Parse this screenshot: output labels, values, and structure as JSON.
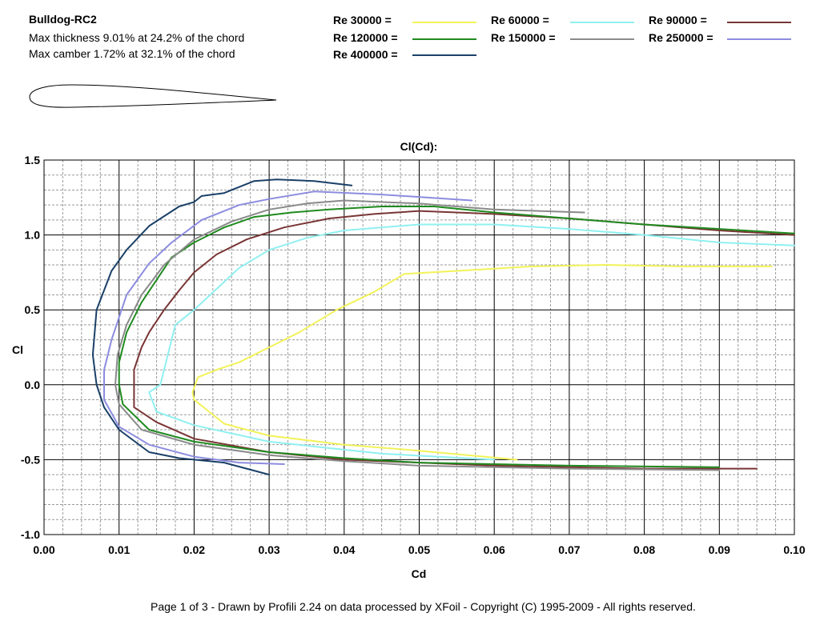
{
  "header": {
    "airfoil_name": "Bulldog-RC2",
    "max_thickness": "Max thickness 9.01% at 24.2% of the chord",
    "max_camber": "Max camber 1.72% at 32.1% of the chord"
  },
  "footer": "Page 1 of 3   -   Drawn by Profili 2.24 on data processed by  XFoil - Copyright (C) 1995-2009 - All rights reserved.",
  "colors": {
    "re_30000": "#f2f25a",
    "re_60000": "#90f0f0",
    "re_90000": "#7a3535",
    "re_120000": "#1f8a1f",
    "re_150000": "#8a8a8a",
    "re_250000": "#8c8ce0",
    "re_400000": "#1a4068",
    "grid_major": "#000000",
    "grid_minor": "#9a9a9a"
  },
  "chart_data": {
    "type": "line",
    "title": "Cl(Cd):",
    "xlabel": "Cd",
    "ylabel": "Cl",
    "xlim": [
      0.0,
      0.1
    ],
    "ylim": [
      -1.0,
      1.5
    ],
    "x_ticks": [
      "0.00",
      "0.01",
      "0.02",
      "0.03",
      "0.04",
      "0.05",
      "0.06",
      "0.07",
      "0.08",
      "0.09",
      "0.10"
    ],
    "y_ticks": [
      "1.5",
      "1.0",
      "0.5",
      "0.0",
      "-0.5",
      "-1.0"
    ],
    "grid": true,
    "legend_position": "top",
    "series": [
      {
        "name": "Re 30000 =",
        "color_key": "re_30000",
        "cd": [
          0.063,
          0.05,
          0.04,
          0.03,
          0.024,
          0.02,
          0.0198,
          0.0205,
          0.023,
          0.026,
          0.03,
          0.034,
          0.039,
          0.044,
          0.048,
          0.055,
          0.065,
          0.075,
          0.085,
          0.097
        ],
        "cl": [
          -0.5,
          -0.44,
          -0.4,
          -0.34,
          -0.26,
          -0.1,
          -0.05,
          0.05,
          0.1,
          0.15,
          0.25,
          0.35,
          0.5,
          0.62,
          0.74,
          0.76,
          0.79,
          0.8,
          0.79,
          0.79
        ]
      },
      {
        "name": "Re 60000 =",
        "color_key": "re_60000",
        "cd": [
          0.06,
          0.045,
          0.03,
          0.02,
          0.015,
          0.014,
          0.0155,
          0.016,
          0.017,
          0.0175,
          0.02,
          0.023,
          0.026,
          0.03,
          0.035,
          0.04,
          0.05,
          0.06,
          0.07,
          0.08,
          0.09,
          0.1
        ],
        "cl": [
          -0.5,
          -0.46,
          -0.38,
          -0.27,
          -0.18,
          -0.05,
          0.0,
          0.1,
          0.3,
          0.4,
          0.5,
          0.64,
          0.78,
          0.9,
          0.98,
          1.03,
          1.07,
          1.07,
          1.04,
          1.0,
          0.95,
          0.93
        ]
      },
      {
        "name": "Re 90000 =",
        "color_key": "re_90000",
        "cd": [
          0.095,
          0.08,
          0.06,
          0.04,
          0.03,
          0.02,
          0.015,
          0.012,
          0.012,
          0.013,
          0.014,
          0.016,
          0.018,
          0.02,
          0.023,
          0.027,
          0.032,
          0.038,
          0.044,
          0.05,
          0.06,
          0.07,
          0.08,
          0.09,
          0.1
        ],
        "cl": [
          -0.56,
          -0.56,
          -0.54,
          -0.5,
          -0.45,
          -0.36,
          -0.25,
          -0.15,
          0.1,
          0.25,
          0.35,
          0.5,
          0.63,
          0.75,
          0.87,
          0.97,
          1.05,
          1.11,
          1.14,
          1.16,
          1.14,
          1.11,
          1.07,
          1.03,
          1.0
        ]
      },
      {
        "name": "Re 120000 =",
        "color_key": "re_120000",
        "cd": [
          0.09,
          0.07,
          0.05,
          0.04,
          0.03,
          0.02,
          0.014,
          0.0105,
          0.01,
          0.01,
          0.011,
          0.013,
          0.015,
          0.017,
          0.02,
          0.024,
          0.028,
          0.033,
          0.038,
          0.045,
          0.052,
          0.06,
          0.07,
          0.08,
          0.09,
          0.1
        ],
        "cl": [
          -0.55,
          -0.54,
          -0.52,
          -0.49,
          -0.45,
          -0.38,
          -0.3,
          -0.13,
          0.0,
          0.15,
          0.35,
          0.55,
          0.7,
          0.85,
          0.95,
          1.05,
          1.12,
          1.15,
          1.17,
          1.19,
          1.19,
          1.15,
          1.11,
          1.07,
          1.04,
          1.01
        ]
      },
      {
        "name": "Re 150000 =",
        "color_key": "re_150000",
        "cd": [
          0.09,
          0.07,
          0.05,
          0.04,
          0.03,
          0.02,
          0.013,
          0.01,
          0.0095,
          0.0098,
          0.011,
          0.013,
          0.016,
          0.02,
          0.025,
          0.03,
          0.035,
          0.04,
          0.05,
          0.06,
          0.072
        ],
        "cl": [
          -0.57,
          -0.56,
          -0.54,
          -0.51,
          -0.47,
          -0.4,
          -0.3,
          -0.13,
          0.0,
          0.2,
          0.4,
          0.6,
          0.8,
          0.97,
          1.09,
          1.17,
          1.21,
          1.23,
          1.21,
          1.17,
          1.15
        ]
      },
      {
        "name": "Re 250000 =",
        "color_key": "re_250000",
        "cd": [
          0.032,
          0.026,
          0.02,
          0.014,
          0.01,
          0.008,
          0.008,
          0.009,
          0.011,
          0.014,
          0.017,
          0.021,
          0.026,
          0.03,
          0.036,
          0.045,
          0.057
        ],
        "cl": [
          -0.53,
          -0.52,
          -0.48,
          -0.4,
          -0.28,
          -0.1,
          0.1,
          0.3,
          0.6,
          0.81,
          0.95,
          1.1,
          1.2,
          1.24,
          1.29,
          1.27,
          1.23
        ]
      },
      {
        "name": "Re 400000 =",
        "color_key": "re_400000",
        "cd": [
          0.03,
          0.024,
          0.018,
          0.014,
          0.01,
          0.008,
          0.007,
          0.0065,
          0.007,
          0.009,
          0.011,
          0.014,
          0.018,
          0.02,
          0.021,
          0.024,
          0.026,
          0.028,
          0.031,
          0.036,
          0.041
        ],
        "cl": [
          -0.6,
          -0.52,
          -0.49,
          -0.45,
          -0.3,
          -0.15,
          0.0,
          0.2,
          0.5,
          0.76,
          0.9,
          1.06,
          1.19,
          1.22,
          1.26,
          1.28,
          1.32,
          1.36,
          1.37,
          1.36,
          1.33
        ]
      }
    ]
  }
}
